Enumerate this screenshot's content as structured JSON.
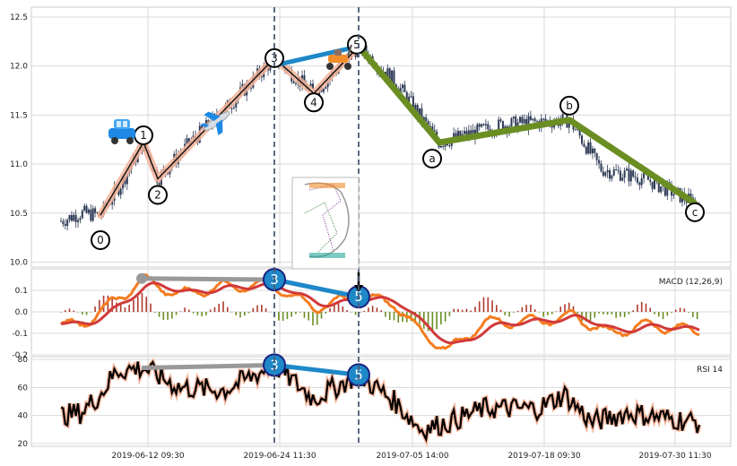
{
  "chart_data": {
    "type": "line",
    "x_ticks": [
      "2019-06-12 09:30",
      "2019-06-24 11:30",
      "2019-07-05 14:00",
      "2019-07-18 09:30",
      "2019-07-30 11:30"
    ],
    "vertical_markers": [
      "wave 3",
      "wave 5"
    ],
    "price_panel": {
      "ylim": [
        9.95,
        12.6
      ],
      "yticks": [
        10.0,
        10.5,
        11.0,
        11.5,
        12.0,
        12.5
      ],
      "candle_color": "#2d3a55",
      "impulse_waves": [
        {
          "label": "0",
          "price": 10.48
        },
        {
          "label": "1",
          "price": 11.22
        },
        {
          "label": "2",
          "price": 10.85
        },
        {
          "label": "3",
          "price": 12.08
        },
        {
          "label": "4",
          "price": 11.72
        },
        {
          "label": "5",
          "price": 12.2
        }
      ],
      "corrective_waves": [
        {
          "label": "a",
          "price": 11.22
        },
        {
          "label": "b",
          "price": 11.45
        },
        {
          "label": "c",
          "price": 10.6
        }
      ],
      "impulse_color": "#f4b49a",
      "corrective_color": "#6b8e23",
      "divergence_color": "#1e88c8"
    },
    "macd_panel": {
      "label": "MACD (12,26,9)",
      "ylim": [
        -0.2,
        0.2
      ],
      "yticks": [
        "0.1",
        "0.0",
        "-0.1",
        "-0.2"
      ],
      "macd_color": "#f57c1f",
      "signal_color": "#d13a3a",
      "hist_pos_color": "#b03a2e",
      "hist_neg_color": "#6b8e23",
      "divergence": {
        "wave3_value": 0.15,
        "wave5_value": 0.07,
        "previous_peak": 0.155
      }
    },
    "rsi_panel": {
      "label": "RSI 14",
      "ylim": [
        18,
        82
      ],
      "yticks": [
        20,
        40,
        60,
        80
      ],
      "line_color": "#000000",
      "glow_color": "#f4b49a",
      "divergence": {
        "wave3_value": 76,
        "wave5_value": 69,
        "previous_peak": 74
      }
    }
  }
}
